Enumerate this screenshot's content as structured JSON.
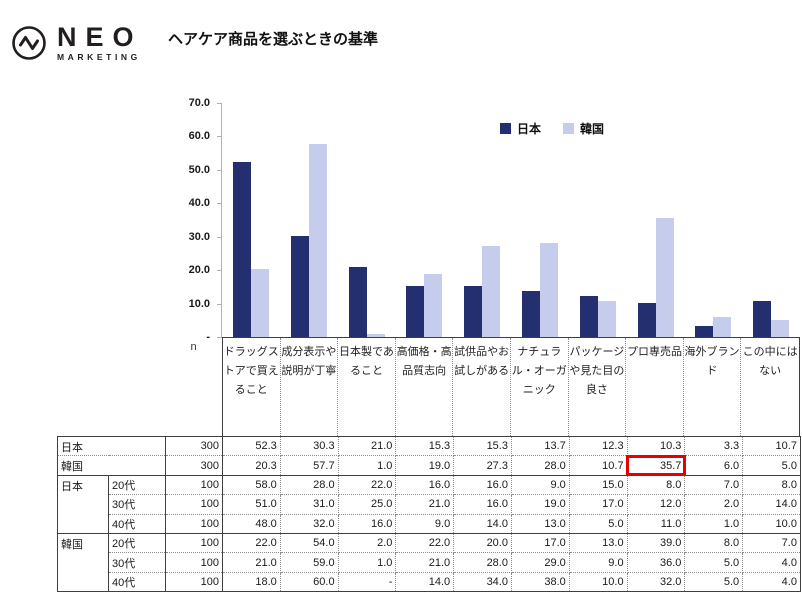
{
  "logo": {
    "name": "NEO",
    "subname": "MARKETING"
  },
  "title": "ヘアケア商品を選ぶときの基準",
  "chart_data": {
    "type": "bar",
    "title": "ヘアケア商品を選ぶときの基準",
    "categories": [
      "ドラッグストアで買えること",
      "成分表示や説明が丁寧",
      "日本製であること",
      "高価格・高品質志向",
      "試供品やお試しがある",
      "ナチュラル・オーガニック",
      "パッケージや見た目の良さ",
      "プロ専売品",
      "海外ブランド",
      "この中にはない"
    ],
    "series": [
      {
        "name": "日本",
        "color": "#232F6E",
        "values": [
          52.3,
          30.3,
          21.0,
          15.3,
          15.3,
          13.7,
          12.3,
          10.3,
          3.3,
          10.7
        ]
      },
      {
        "name": "韓国",
        "color": "#C5CCEC",
        "values": [
          20.3,
          57.7,
          1.0,
          19.0,
          27.3,
          28.0,
          10.7,
          35.7,
          6.0,
          5.0
        ]
      }
    ],
    "ylim": [
      0,
      70
    ],
    "ytick_interval": 10,
    "ytick_labels": [
      "-",
      "10.0",
      "20.0",
      "30.0",
      "40.0",
      "50.0",
      "60.0",
      "70.0"
    ],
    "grid": false,
    "legend_position": "top"
  },
  "table": {
    "n_header": "n",
    "col_headers": [
      "ドラッグストアで買えること",
      "成分表示や説明が丁寧",
      "日本製であること",
      "高価格・高品質志向",
      "試供品やお試しがある",
      "ナチュラル・オーガニック",
      "パッケージや見た目の良さ",
      "プロ専売品",
      "海外ブランド",
      "この中にはない"
    ],
    "rows": [
      {
        "group": "日本",
        "age": "",
        "n": "300",
        "summary": true,
        "values": [
          "52.3",
          "30.3",
          "21.0",
          "15.3",
          "15.3",
          "13.7",
          "12.3",
          "10.3",
          "3.3",
          "10.7"
        ]
      },
      {
        "group": "韓国",
        "age": "",
        "n": "300",
        "summary": true,
        "highlight_col": 7,
        "values": [
          "20.3",
          "57.7",
          "1.0",
          "19.0",
          "27.3",
          "28.0",
          "10.7",
          "35.7",
          "6.0",
          "5.0"
        ]
      },
      {
        "group": "日本",
        "age": "20代",
        "n": "100",
        "values": [
          "58.0",
          "28.0",
          "22.0",
          "16.0",
          "16.0",
          "9.0",
          "15.0",
          "8.0",
          "7.0",
          "8.0"
        ]
      },
      {
        "group": "",
        "age": "30代",
        "n": "100",
        "values": [
          "51.0",
          "31.0",
          "25.0",
          "21.0",
          "16.0",
          "19.0",
          "17.0",
          "12.0",
          "2.0",
          "14.0"
        ]
      },
      {
        "group": "",
        "age": "40代",
        "n": "100",
        "values": [
          "48.0",
          "32.0",
          "16.0",
          "9.0",
          "14.0",
          "13.0",
          "5.0",
          "11.0",
          "1.0",
          "10.0"
        ]
      },
      {
        "group": "韓国",
        "age": "20代",
        "n": "100",
        "values": [
          "22.0",
          "54.0",
          "2.0",
          "22.0",
          "20.0",
          "17.0",
          "13.0",
          "39.0",
          "8.0",
          "7.0"
        ]
      },
      {
        "group": "",
        "age": "30代",
        "n": "100",
        "values": [
          "21.0",
          "59.0",
          "1.0",
          "21.0",
          "28.0",
          "29.0",
          "9.0",
          "36.0",
          "5.0",
          "4.0"
        ]
      },
      {
        "group": "",
        "age": "40代",
        "n": "100",
        "values": [
          "18.0",
          "60.0",
          "-",
          "14.0",
          "34.0",
          "38.0",
          "10.0",
          "32.0",
          "5.0",
          "4.0"
        ]
      }
    ]
  },
  "colors": {
    "japan": "#232F6E",
    "korea": "#C5CCEC",
    "highlight": "#e60000"
  }
}
